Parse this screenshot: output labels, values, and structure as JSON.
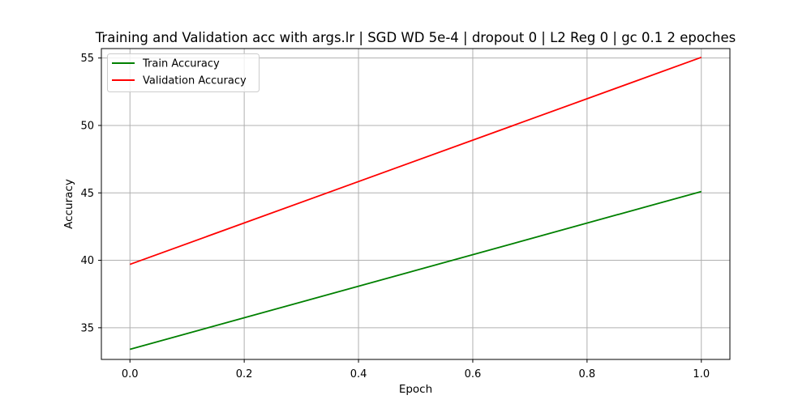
{
  "chart_data": {
    "type": "line",
    "title": "Training and Validation acc with args.lr | SGD WD 5e-4 | dropout 0 | L2 Reg 0 | gc 0.1 2 epoches",
    "xlabel": "Epoch",
    "ylabel": "Accuracy",
    "xlim": [
      -0.05,
      1.05
    ],
    "ylim": [
      32.65,
      55.7
    ],
    "xticks": [
      0.0,
      0.2,
      0.4,
      0.6,
      0.8,
      1.0
    ],
    "xtick_labels": [
      "0.0",
      "0.2",
      "0.4",
      "0.6",
      "0.8",
      "1.0"
    ],
    "yticks": [
      35,
      40,
      45,
      50,
      55
    ],
    "ytick_labels": [
      "35",
      "40",
      "45",
      "50",
      "55"
    ],
    "grid": true,
    "legend_position": "top-left",
    "series": [
      {
        "name": "Train Accuracy",
        "color": "#008000",
        "x": [
          0,
          1
        ],
        "values": [
          33.4,
          45.1
        ]
      },
      {
        "name": "Validation Accuracy",
        "color": "#ff0000",
        "x": [
          0,
          1
        ],
        "values": [
          39.7,
          55.05
        ]
      }
    ]
  }
}
